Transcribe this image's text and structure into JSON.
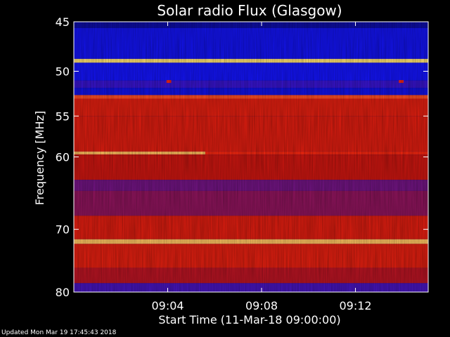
{
  "chart_data": {
    "type": "heatmap",
    "title": "Solar radio Flux (Glasgow)",
    "xlabel": "Start Time (11-Mar-18 09:00:00)",
    "ylabel": "Frequency [MHz]",
    "x_range_minutes": [
      0,
      15.1
    ],
    "ylim": [
      45,
      80
    ],
    "x_ticks": [
      {
        "label": "09:04",
        "minute": 4
      },
      {
        "label": "09:08",
        "minute": 8
      },
      {
        "label": "09:12",
        "minute": 12
      }
    ],
    "y_ticks": [
      45,
      50,
      55,
      60,
      70,
      80
    ],
    "frequency_scale": "log",
    "colormap": [
      "#0a0a78",
      "#1414ff",
      "#c81410",
      "#ff2a10",
      "#ffe070"
    ],
    "bands": [
      {
        "from": 45.0,
        "to": 45.6,
        "level": 0.08
      },
      {
        "from": 45.6,
        "to": 48.7,
        "level": 0.22
      },
      {
        "from": 48.7,
        "to": 49.1,
        "level": 1.0
      },
      {
        "from": 49.1,
        "to": 51.0,
        "level": 0.24
      },
      {
        "from": 51.0,
        "to": 51.8,
        "level": 0.3
      },
      {
        "from": 51.8,
        "to": 52.6,
        "level": 0.2
      },
      {
        "from": 52.6,
        "to": 53.0,
        "level": 0.8
      },
      {
        "from": 53.0,
        "to": 55.0,
        "level": 0.62
      },
      {
        "from": 55.0,
        "to": 59.3,
        "level": 0.6
      },
      {
        "from": 59.3,
        "to": 59.7,
        "level": 0.7
      },
      {
        "from": 59.7,
        "to": 63.0,
        "level": 0.52
      },
      {
        "from": 63.0,
        "to": 64.5,
        "level": 0.38
      },
      {
        "from": 64.5,
        "to": 68.0,
        "level": 0.42
      },
      {
        "from": 68.0,
        "to": 71.5,
        "level": 0.6
      },
      {
        "from": 71.5,
        "to": 72.2,
        "level": 0.96
      },
      {
        "from": 72.2,
        "to": 76.0,
        "level": 0.62
      },
      {
        "from": 76.0,
        "to": 78.5,
        "level": 0.48
      },
      {
        "from": 78.5,
        "to": 80.0,
        "level": 0.32
      }
    ],
    "features": [
      {
        "freq": 59.5,
        "t_start": 0,
        "t_end": 5.6,
        "level": 0.95
      },
      {
        "freq": 51.1,
        "t_start": 3.95,
        "t_end": 4.15,
        "level": 0.7
      },
      {
        "freq": 51.1,
        "t_start": 13.85,
        "t_end": 14.05,
        "level": 0.7
      }
    ]
  },
  "footer": {
    "updated": "Updated Mon Mar 19 17:45:43 2018"
  }
}
